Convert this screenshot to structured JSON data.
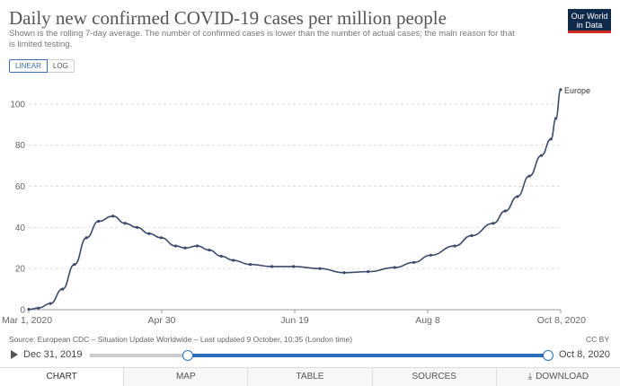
{
  "header": {
    "title": "Daily new confirmed COVID-19 cases per million people",
    "subtitle": "Shown is the rolling 7-day average. The number of confirmed cases is lower than the number of actual cases; the main reason for that is limited testing.",
    "logo_line1": "Our World",
    "logo_line2": "in Data"
  },
  "scale_toggle": {
    "linear": "LINEAR",
    "log": "LOG",
    "selected": "LINEAR"
  },
  "footer": {
    "source": "Source: European CDC – Situation Update Worldwide – Last updated 9 October, 10:35 (London time)",
    "license": "CC BY"
  },
  "timeline": {
    "start_label": "Dec 31, 2019",
    "end_label": "Oct 8, 2020",
    "start_position": 0.214,
    "end_position": 1.0
  },
  "tabs": [
    {
      "label": "CHART"
    },
    {
      "label": "MAP"
    },
    {
      "label": "TABLE"
    },
    {
      "label": "SOURCES"
    },
    {
      "label": "DOWNLOAD",
      "icon": "download-icon"
    }
  ],
  "chart_data": {
    "type": "line",
    "x_ticks": [
      "Mar 1, 2020",
      "Apr 30",
      "Jun 19",
      "Aug 8",
      "Oct 8, 2020"
    ],
    "y_ticks": [
      0,
      20,
      40,
      60,
      80,
      100
    ],
    "ylim": [
      0,
      110
    ],
    "xlim": [
      "2020-03-01",
      "2020-10-08"
    ],
    "grid": true,
    "series": [
      {
        "name": "Europe",
        "color": "#3b4a6b",
        "points": [
          [
            "2020-03-01",
            0.2
          ],
          [
            "2020-03-05",
            0.8
          ],
          [
            "2020-03-10",
            3
          ],
          [
            "2020-03-15",
            10
          ],
          [
            "2020-03-20",
            22
          ],
          [
            "2020-03-25",
            35
          ],
          [
            "2020-03-30",
            43
          ],
          [
            "2020-04-05",
            45.5
          ],
          [
            "2020-04-10",
            42
          ],
          [
            "2020-04-15",
            40
          ],
          [
            "2020-04-20",
            37
          ],
          [
            "2020-04-25",
            35
          ],
          [
            "2020-05-01",
            31
          ],
          [
            "2020-05-05",
            30
          ],
          [
            "2020-05-10",
            31
          ],
          [
            "2020-05-15",
            29
          ],
          [
            "2020-05-20",
            26
          ],
          [
            "2020-05-25",
            24
          ],
          [
            "2020-06-01",
            22
          ],
          [
            "2020-06-10",
            21
          ],
          [
            "2020-06-19",
            21
          ],
          [
            "2020-06-30",
            20
          ],
          [
            "2020-07-10",
            18
          ],
          [
            "2020-07-20",
            18.5
          ],
          [
            "2020-07-31",
            20.5
          ],
          [
            "2020-08-08",
            23
          ],
          [
            "2020-08-15",
            26.5
          ],
          [
            "2020-08-25",
            31
          ],
          [
            "2020-09-01",
            36
          ],
          [
            "2020-09-10",
            42
          ],
          [
            "2020-09-15",
            48
          ],
          [
            "2020-09-20",
            55
          ],
          [
            "2020-09-25",
            65
          ],
          [
            "2020-09-30",
            75
          ],
          [
            "2020-10-04",
            83
          ],
          [
            "2020-10-06",
            93
          ],
          [
            "2020-10-08",
            107
          ]
        ]
      }
    ]
  }
}
